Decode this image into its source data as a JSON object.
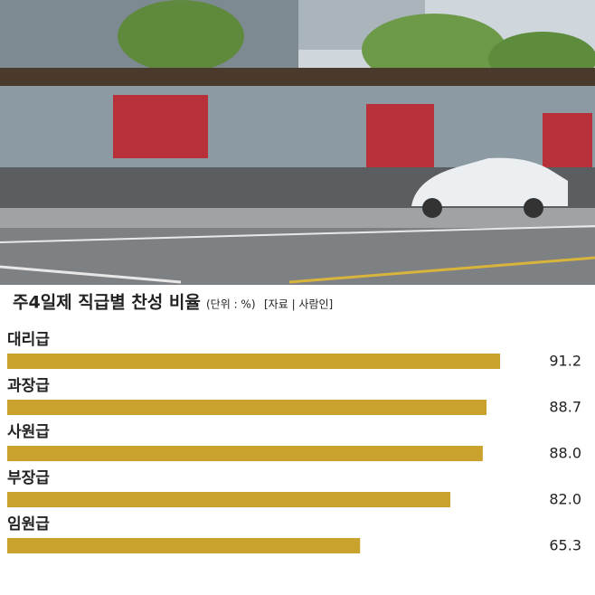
{
  "chart_data": {
    "type": "bar",
    "orientation": "horizontal",
    "title": "주4일제 직급별 찬성 비율",
    "subtitle": "(단위 : %)",
    "source": "[자료 | 사람인]",
    "categories": [
      "대리급",
      "과장급",
      "사원급",
      "부장급",
      "임원급"
    ],
    "values": [
      91.2,
      88.7,
      88.0,
      82.0,
      65.3
    ],
    "value_labels": [
      "91.2",
      "88.7",
      "88.0",
      "82.0",
      "65.3"
    ],
    "color": "#c8a22c"
  }
}
